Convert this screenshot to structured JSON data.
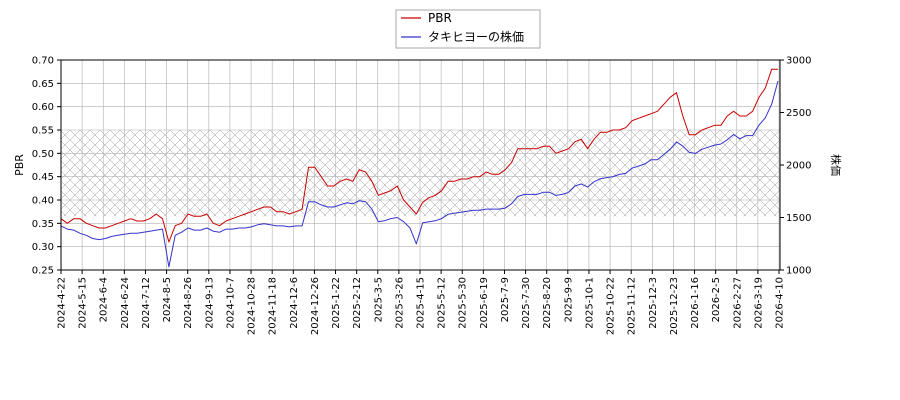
{
  "chart_data": {
    "type": "line",
    "title": "",
    "legend": {
      "placement": "top-center",
      "entries": [
        "PBR",
        "タキヒヨーの株価"
      ]
    },
    "x_ticks": [
      "2024-4-22",
      "2024-5-15",
      "2024-6-4",
      "2024-6-24",
      "2024-7-12",
      "2024-8-5",
      "2024-8-26",
      "2024-9-13",
      "2024-10-7",
      "2024-10-28",
      "2024-11-18",
      "2024-12-6",
      "2024-12-26",
      "2025-1-22",
      "2025-2-12",
      "2025-3-5",
      "2025-3-26",
      "2025-4-15",
      "2025-5-12",
      "2025-5-30",
      "2025-6-19",
      "2025-7-9",
      "2025-7-30",
      "2025-8-20",
      "2025-9-9",
      "2025-10-1",
      "2025-10-22",
      "2025-11-12",
      "2025-12-3",
      "2025-12-23",
      "2026-1-16",
      "2026-2-5",
      "2026-2-27",
      "2026-3-19",
      "2026-4-10"
    ],
    "y_left": {
      "label": "PBR",
      "ylim": [
        0.25,
        0.7
      ],
      "ticks": [
        "0.25",
        "0.30",
        "0.35",
        "0.40",
        "0.45",
        "0.50",
        "0.55",
        "0.60",
        "0.65",
        "0.70"
      ]
    },
    "y_right": {
      "label": "株価",
      "ylim": [
        1000,
        3000
      ],
      "ticks": [
        "1000",
        "1500",
        "2000",
        "2500",
        "3000"
      ]
    },
    "shaded_band": {
      "axis": "left",
      "from": 0.365,
      "to": 0.55
    },
    "grid": true,
    "series": [
      {
        "name": "PBR",
        "axis": "left",
        "color": "#cc0000",
        "values": [
          0.36,
          0.35,
          0.36,
          0.36,
          0.35,
          0.345,
          0.34,
          0.34,
          0.345,
          0.35,
          0.355,
          0.36,
          0.355,
          0.355,
          0.36,
          0.37,
          0.36,
          0.31,
          0.345,
          0.35,
          0.37,
          0.365,
          0.365,
          0.37,
          0.35,
          0.345,
          0.355,
          0.36,
          0.365,
          0.37,
          0.375,
          0.38,
          0.385,
          0.385,
          0.375,
          0.375,
          0.37,
          0.375,
          0.38,
          0.47,
          0.47,
          0.45,
          0.43,
          0.43,
          0.44,
          0.445,
          0.44,
          0.465,
          0.46,
          0.44,
          0.41,
          0.415,
          0.42,
          0.43,
          0.4,
          0.385,
          0.37,
          0.395,
          0.405,
          0.41,
          0.42,
          0.44,
          0.44,
          0.445,
          0.445,
          0.45,
          0.45,
          0.46,
          0.455,
          0.455,
          0.465,
          0.48,
          0.51,
          0.51,
          0.51,
          0.51,
          0.515,
          0.515,
          0.5,
          0.505,
          0.51,
          0.525,
          0.53,
          0.51,
          0.53,
          0.545,
          0.545,
          0.55,
          0.55,
          0.555,
          0.57,
          0.575,
          0.58,
          0.585,
          0.59,
          0.605,
          0.62,
          0.63,
          0.58,
          0.54,
          0.54,
          0.55,
          0.555,
          0.56,
          0.56,
          0.58,
          0.59,
          0.58,
          0.58,
          0.59,
          0.62,
          0.64,
          0.68,
          0.68
        ]
      },
      {
        "name": "タキヒヨーの株価",
        "axis": "right",
        "color": "#3333cc",
        "values": [
          1420,
          1390,
          1380,
          1350,
          1330,
          1300,
          1290,
          1300,
          1320,
          1330,
          1340,
          1350,
          1350,
          1360,
          1370,
          1380,
          1390,
          1030,
          1330,
          1360,
          1400,
          1380,
          1380,
          1400,
          1370,
          1360,
          1390,
          1390,
          1400,
          1400,
          1410,
          1430,
          1440,
          1430,
          1420,
          1420,
          1410,
          1420,
          1420,
          1650,
          1650,
          1620,
          1600,
          1600,
          1620,
          1640,
          1630,
          1660,
          1650,
          1580,
          1460,
          1470,
          1490,
          1500,
          1460,
          1400,
          1250,
          1450,
          1460,
          1470,
          1490,
          1530,
          1540,
          1550,
          1560,
          1570,
          1570,
          1580,
          1580,
          1580,
          1590,
          1630,
          1700,
          1720,
          1720,
          1720,
          1740,
          1740,
          1710,
          1720,
          1740,
          1800,
          1820,
          1790,
          1840,
          1870,
          1880,
          1890,
          1910,
          1920,
          1970,
          1990,
          2010,
          2050,
          2050,
          2100,
          2150,
          2220,
          2180,
          2120,
          2110,
          2150,
          2170,
          2190,
          2200,
          2240,
          2290,
          2250,
          2280,
          2280,
          2380,
          2450,
          2580,
          2800
        ]
      }
    ]
  }
}
